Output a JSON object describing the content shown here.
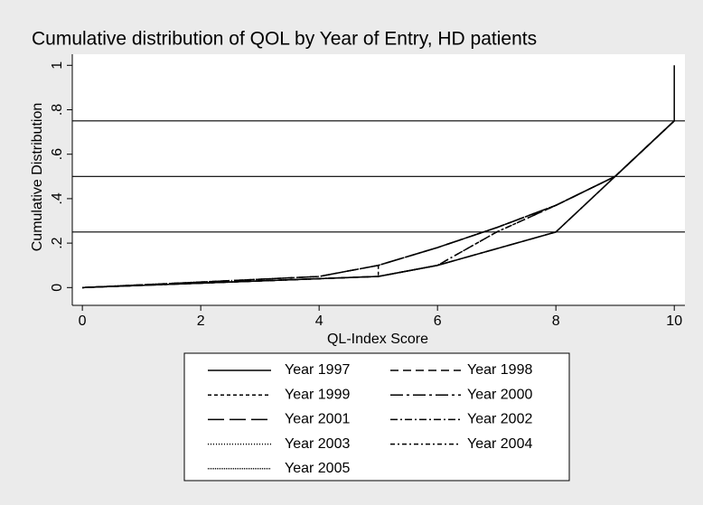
{
  "chart_data": {
    "type": "line",
    "title": "Cumulative distribution of QOL by Year of Entry, HD patients",
    "x_label": "QL-Index Score",
    "y_label": "Cumulative Distribution",
    "xlim": [
      -0.17,
      10.18
    ],
    "ylim": [
      -0.08,
      1.05
    ],
    "xticks": [
      0,
      2,
      4,
      6,
      8,
      10
    ],
    "yticks": [
      0,
      {
        "value": 0.2,
        "label": ".2"
      },
      {
        "value": 0.4,
        "label": ".4"
      },
      {
        "value": 0.6,
        "label": ".6"
      },
      {
        "value": 0.8,
        "label": ".8"
      },
      1
    ],
    "reference_lines": [
      0.25,
      0.5,
      0.75
    ],
    "series": [
      {
        "name": "Year 1997",
        "color": "#000000",
        "dash": "none",
        "x": [
          0,
          4,
          5,
          6,
          8,
          10,
          10
        ],
        "values": [
          0,
          0.04,
          0.05,
          0.1,
          0.25,
          0.75,
          1
        ]
      },
      {
        "name": "Year 1998",
        "color": "#000000",
        "dash": "9 5",
        "x": [
          0,
          4,
          5,
          6,
          7,
          8,
          9,
          10
        ],
        "values": [
          0,
          0.05,
          0.1,
          0.18,
          0.27,
          0.37,
          0.5,
          0.75
        ]
      },
      {
        "name": "Year 1999",
        "color": "#000000",
        "dash": "4 3",
        "x": [
          0,
          4,
          5,
          5,
          6,
          7,
          8,
          9,
          10
        ],
        "values": [
          0,
          0.04,
          0.05,
          0.1,
          0.18,
          0.27,
          0.37,
          0.5,
          0.75
        ]
      },
      {
        "name": "Year 2000",
        "color": "#000000",
        "dash": "14 4 3 4",
        "x": [
          0,
          4,
          5,
          6,
          8,
          10
        ],
        "values": [
          0,
          0.04,
          0.05,
          0.1,
          0.25,
          0.75
        ]
      },
      {
        "name": "Year 2001",
        "color": "#000000",
        "dash": "18 6",
        "x": [
          0,
          4,
          5,
          6,
          7,
          8,
          9,
          10
        ],
        "values": [
          0,
          0.05,
          0.1,
          0.18,
          0.27,
          0.37,
          0.5,
          0.75
        ]
      },
      {
        "name": "Year 2002",
        "color": "#000000",
        "dash": "8 3 2 3",
        "x": [
          0,
          4,
          5,
          6,
          7,
          8,
          9,
          10
        ],
        "values": [
          0,
          0.04,
          0.05,
          0.1,
          0.25,
          0.37,
          0.5,
          0.75
        ]
      },
      {
        "name": "Year 2003",
        "color": "#000000",
        "dash": "1 2",
        "x": [
          0,
          4,
          5,
          6,
          7,
          8,
          9,
          10
        ],
        "values": [
          0,
          0.05,
          0.1,
          0.18,
          0.27,
          0.37,
          0.5,
          0.75
        ]
      },
      {
        "name": "Year 2004",
        "color": "#000000",
        "dash": "5 3 2 3",
        "x": [
          0,
          4,
          5,
          6,
          7,
          8,
          9,
          10
        ],
        "values": [
          0,
          0.04,
          0.05,
          0.1,
          0.25,
          0.37,
          0.5,
          0.75
        ]
      },
      {
        "name": "Year 2005",
        "color": "#000000",
        "dash": "1 1",
        "x": [
          0,
          4,
          5,
          6,
          8,
          10
        ],
        "values": [
          0,
          0.04,
          0.05,
          0.1,
          0.25,
          0.75
        ]
      }
    ]
  }
}
